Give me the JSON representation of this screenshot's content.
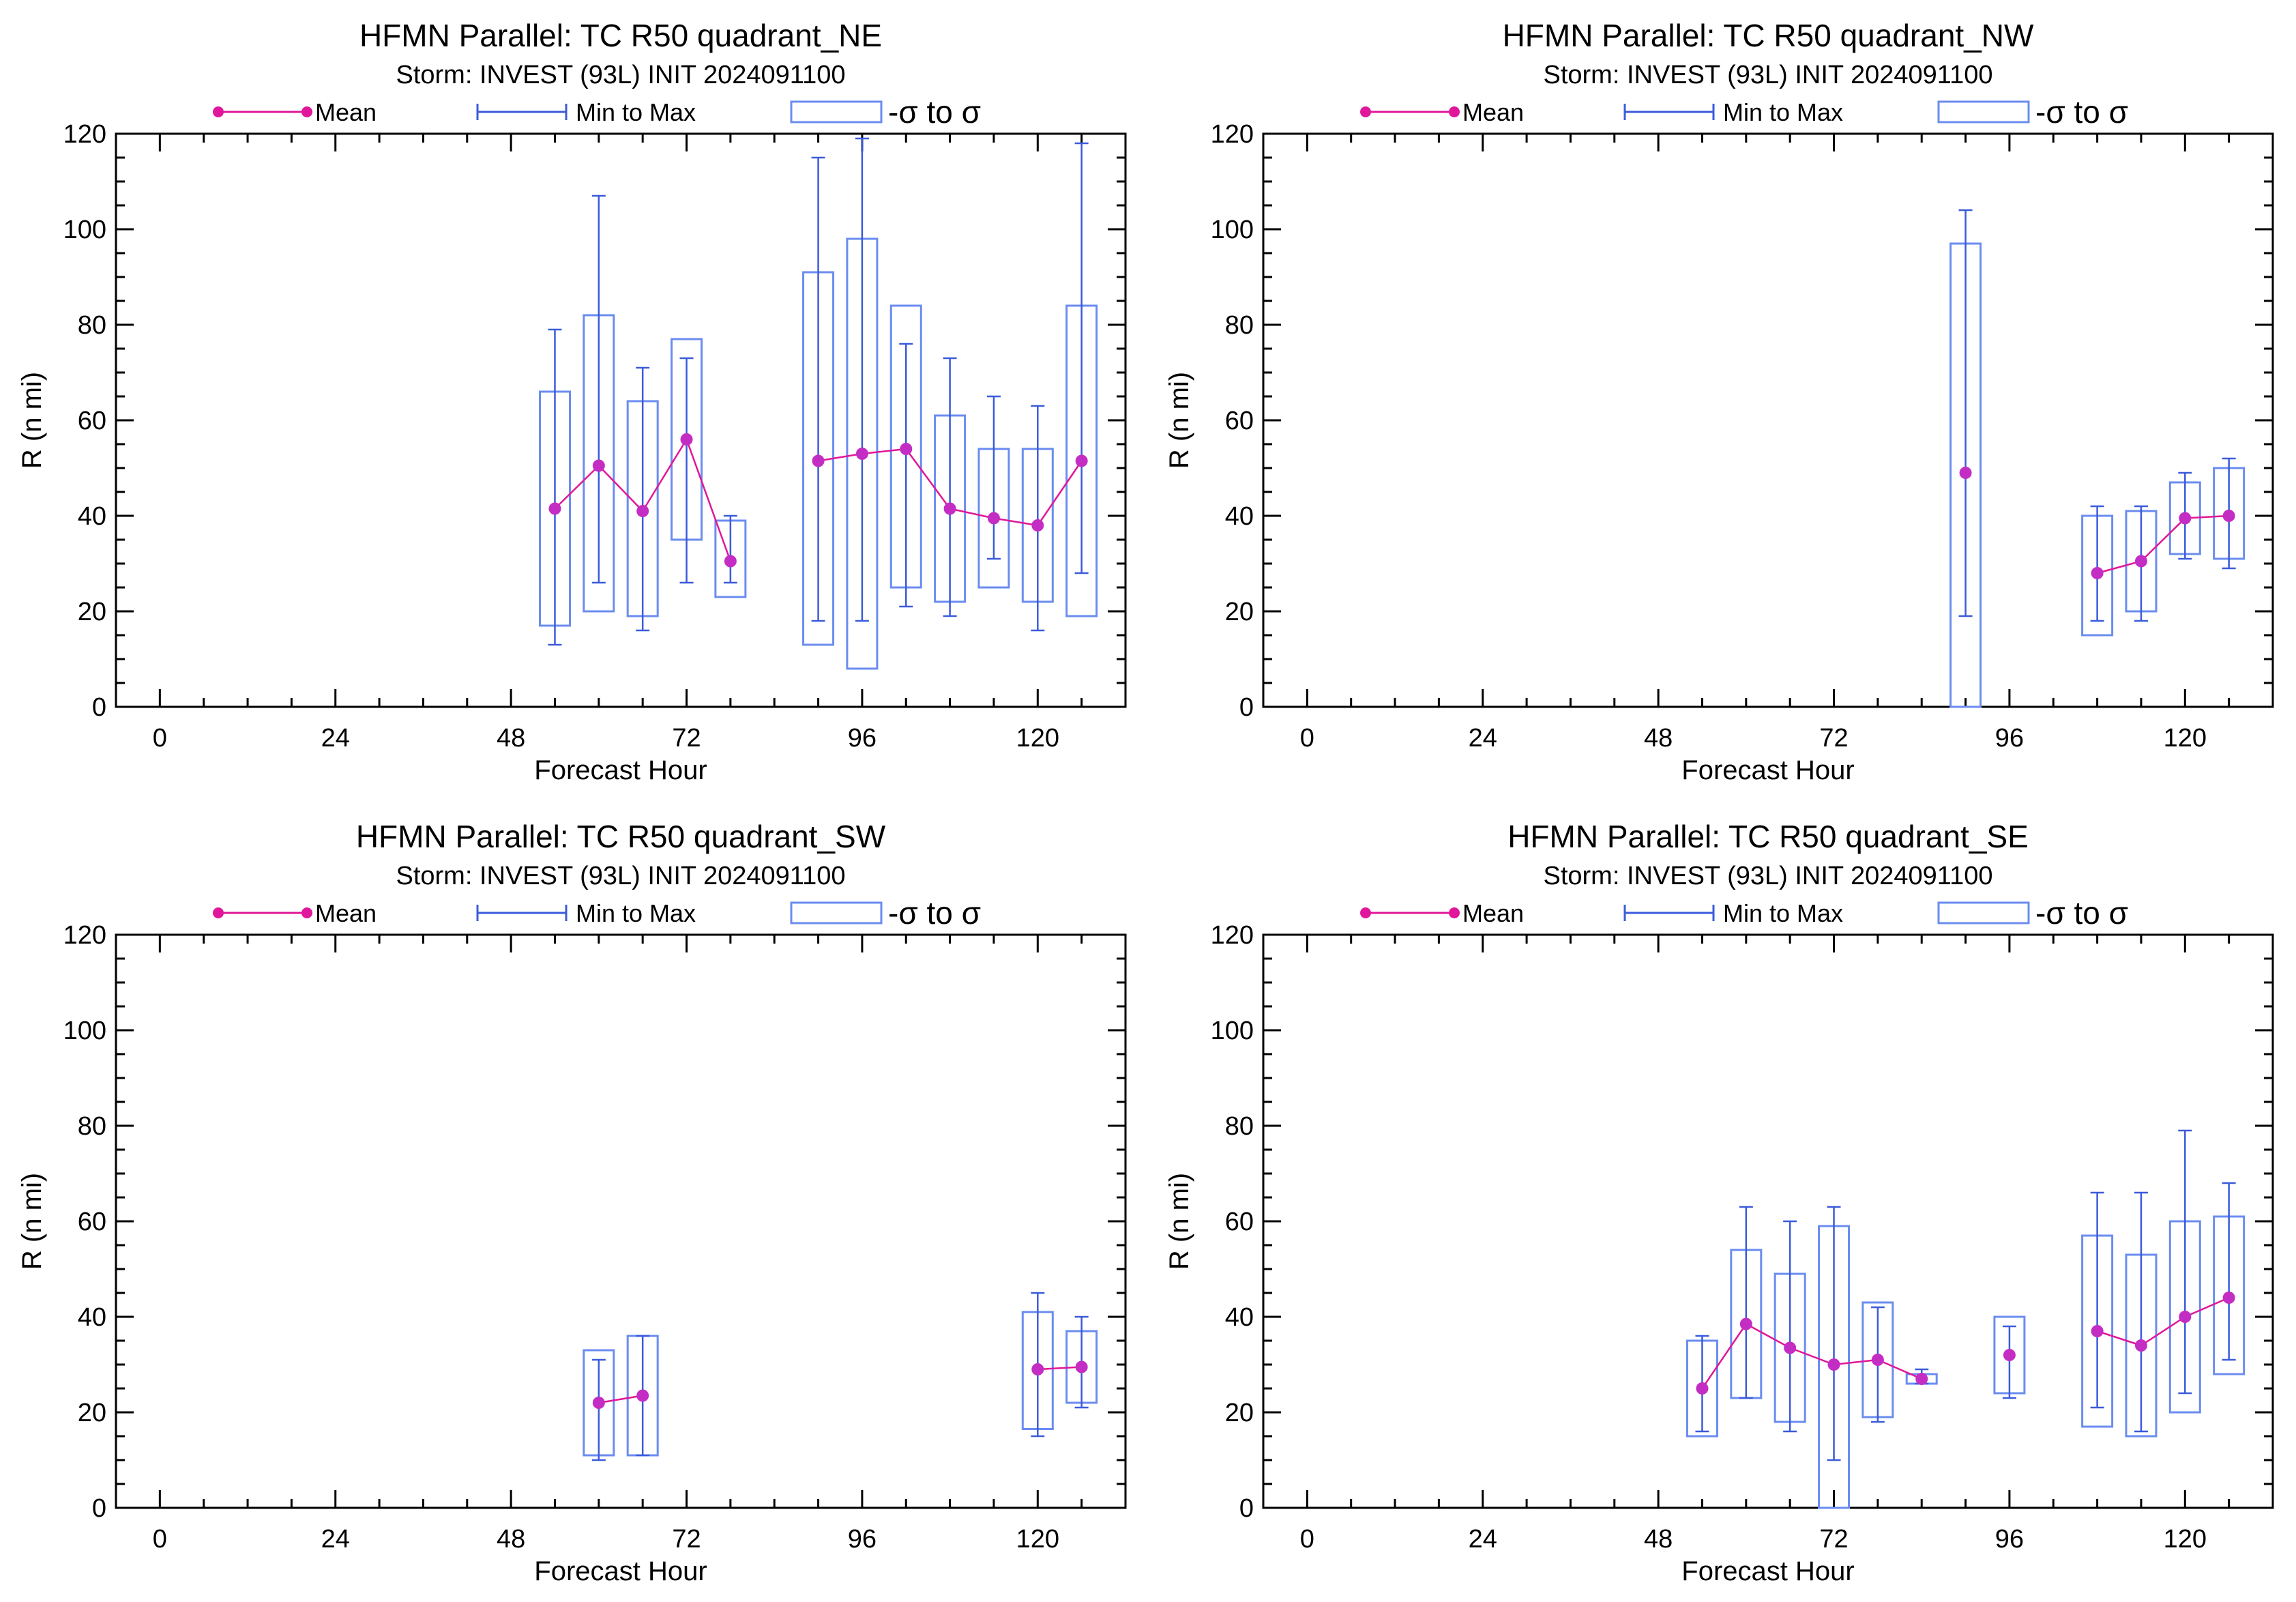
{
  "legend": {
    "mean_label": "Mean",
    "minmax_label": "Min to Max",
    "sigma_label": "-σ to σ"
  },
  "colors": {
    "mean": "#e0179a",
    "mean_marker": "#c42dc4",
    "range": "#3b5bdb",
    "sigma_box": "#6b8cf0",
    "axis": "#000000"
  },
  "chart_data": [
    {
      "type": "box",
      "title": "HFMN Parallel: TC  R50 quadrant_NE",
      "subtitle": "Storm: INVEST (93L) INIT 2024091100",
      "xlabel": "Forecast Hour",
      "ylabel": "R (n mi)",
      "xlim": [
        -6,
        132
      ],
      "ylim": [
        0,
        120
      ],
      "xticks": [
        0,
        24,
        48,
        72,
        96,
        120
      ],
      "yticks": [
        0,
        20,
        40,
        60,
        80,
        100,
        120
      ],
      "points": [
        {
          "x": 54,
          "min": 13,
          "max": 79,
          "lo": 17,
          "hi": 66,
          "mean": 41.5
        },
        {
          "x": 60,
          "min": 26,
          "max": 107,
          "lo": 20,
          "hi": 82,
          "mean": 50.5
        },
        {
          "x": 66,
          "min": 16,
          "max": 71,
          "lo": 19,
          "hi": 64,
          "mean": 41
        },
        {
          "x": 72,
          "min": 26,
          "max": 73,
          "lo": 35,
          "hi": 77,
          "mean": 56
        },
        {
          "x": 78,
          "min": 26,
          "max": 40,
          "lo": 23,
          "hi": 39,
          "mean": 30.5
        },
        {
          "x": 90,
          "min": 18,
          "max": 115,
          "lo": 13,
          "hi": 91,
          "mean": 51.5
        },
        {
          "x": 96,
          "min": 18,
          "max": 119,
          "lo": 8,
          "hi": 98,
          "mean": 53
        },
        {
          "x": 102,
          "min": 21,
          "max": 76,
          "lo": 25,
          "hi": 84,
          "mean": 54
        },
        {
          "x": 108,
          "min": 19,
          "max": 73,
          "lo": 22,
          "hi": 61,
          "mean": 41.5
        },
        {
          "x": 114,
          "min": 31,
          "max": 65,
          "lo": 25,
          "hi": 54,
          "mean": 39.5
        },
        {
          "x": 120,
          "min": 16,
          "max": 63,
          "lo": 22,
          "hi": 54,
          "mean": 38
        },
        {
          "x": 126,
          "min": 28,
          "max": 118,
          "lo": 19,
          "hi": 84,
          "mean": 51.5
        }
      ]
    },
    {
      "type": "box",
      "title": "HFMN Parallel: TC  R50 quadrant_NW",
      "subtitle": "Storm: INVEST (93L) INIT 2024091100",
      "xlabel": "Forecast Hour",
      "ylabel": "R (n mi)",
      "xlim": [
        -6,
        132
      ],
      "ylim": [
        0,
        120
      ],
      "xticks": [
        0,
        24,
        48,
        72,
        96,
        120
      ],
      "yticks": [
        0,
        20,
        40,
        60,
        80,
        100,
        120
      ],
      "points": [
        {
          "x": 90,
          "min": 19,
          "max": 104,
          "lo": 0,
          "hi": 97,
          "mean": 49
        },
        {
          "x": 108,
          "min": 18,
          "max": 42,
          "lo": 15,
          "hi": 40,
          "mean": 28
        },
        {
          "x": 114,
          "min": 18,
          "max": 42,
          "lo": 20,
          "hi": 41,
          "mean": 30.5
        },
        {
          "x": 120,
          "min": 31,
          "max": 49,
          "lo": 32,
          "hi": 47,
          "mean": 39.5
        },
        {
          "x": 126,
          "min": 29,
          "max": 52,
          "lo": 31,
          "hi": 50,
          "mean": 40
        }
      ]
    },
    {
      "type": "box",
      "title": "HFMN Parallel: TC  R50 quadrant_SW",
      "subtitle": "Storm: INVEST (93L) INIT 2024091100",
      "xlabel": "Forecast Hour",
      "ylabel": "R (n mi)",
      "xlim": [
        -6,
        132
      ],
      "ylim": [
        0,
        120
      ],
      "xticks": [
        0,
        24,
        48,
        72,
        96,
        120
      ],
      "yticks": [
        0,
        20,
        40,
        60,
        80,
        100,
        120
      ],
      "points": [
        {
          "x": 60,
          "min": 10,
          "max": 31,
          "lo": 11,
          "hi": 33,
          "mean": 22
        },
        {
          "x": 66,
          "min": 11,
          "max": 36,
          "lo": 11,
          "hi": 36,
          "mean": 23.5
        },
        {
          "x": 120,
          "min": 15,
          "max": 45,
          "lo": 16.5,
          "hi": 41,
          "mean": 29
        },
        {
          "x": 126,
          "min": 21,
          "max": 40,
          "lo": 22,
          "hi": 37,
          "mean": 29.5
        }
      ]
    },
    {
      "type": "box",
      "title": "HFMN Parallel: TC  R50 quadrant_SE",
      "subtitle": "Storm: INVEST (93L) INIT 2024091100",
      "xlabel": "Forecast Hour",
      "ylabel": "R (n mi)",
      "xlim": [
        -6,
        132
      ],
      "ylim": [
        0,
        120
      ],
      "xticks": [
        0,
        24,
        48,
        72,
        96,
        120
      ],
      "yticks": [
        0,
        20,
        40,
        60,
        80,
        100,
        120
      ],
      "points": [
        {
          "x": 54,
          "min": 16,
          "max": 36,
          "lo": 15,
          "hi": 35,
          "mean": 25
        },
        {
          "x": 60,
          "min": 23,
          "max": 63,
          "lo": 23,
          "hi": 54,
          "mean": 38.5
        },
        {
          "x": 66,
          "min": 16,
          "max": 60,
          "lo": 18,
          "hi": 49,
          "mean": 33.5
        },
        {
          "x": 72,
          "min": 10,
          "max": 63,
          "lo": 0,
          "hi": 59,
          "mean": 30
        },
        {
          "x": 78,
          "min": 18,
          "max": 42,
          "lo": 19,
          "hi": 43,
          "mean": 31
        },
        {
          "x": 84,
          "min": 26,
          "max": 29,
          "lo": 26,
          "hi": 28,
          "mean": 27
        },
        {
          "x": 96,
          "min": 23,
          "max": 38,
          "lo": 24,
          "hi": 40,
          "mean": 32
        },
        {
          "x": 108,
          "min": 21,
          "max": 66,
          "lo": 17,
          "hi": 57,
          "mean": 37
        },
        {
          "x": 114,
          "min": 16,
          "max": 66,
          "lo": 15,
          "hi": 53,
          "mean": 34
        },
        {
          "x": 120,
          "min": 24,
          "max": 79,
          "lo": 20,
          "hi": 60,
          "mean": 40
        },
        {
          "x": 126,
          "min": 31,
          "max": 68,
          "lo": 28,
          "hi": 61,
          "mean": 44
        }
      ]
    }
  ]
}
